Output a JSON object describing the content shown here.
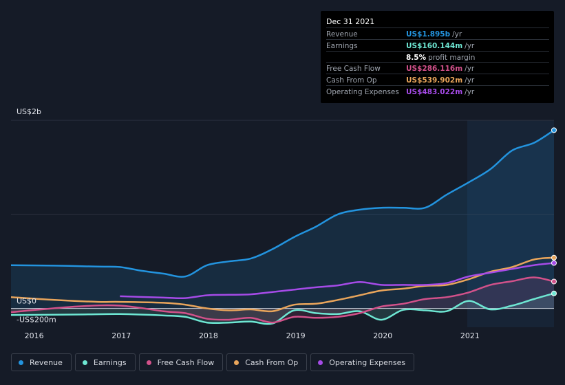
{
  "tooltip": {
    "date": "Dec 31 2021",
    "rows": [
      {
        "label": "Revenue",
        "value": "US$1.895b",
        "unit": "/yr",
        "color": "#2394df"
      },
      {
        "label": "Earnings",
        "value": "US$160.144m",
        "unit": "/yr",
        "color": "#6ee7d3"
      },
      {
        "label": "",
        "value": "8.5%",
        "unit": "profit margin",
        "color": "#ffffff"
      },
      {
        "label": "Free Cash Flow",
        "value": "US$286.116m",
        "unit": "/yr",
        "color": "#d2518a"
      },
      {
        "label": "Cash From Op",
        "value": "US$539.902m",
        "unit": "/yr",
        "color": "#e9a55b"
      },
      {
        "label": "Operating Expenses",
        "value": "US$483.022m",
        "unit": "/yr",
        "color": "#a64be8"
      }
    ]
  },
  "legend": [
    {
      "label": "Revenue",
      "color": "#2394df"
    },
    {
      "label": "Earnings",
      "color": "#6ee7d3"
    },
    {
      "label": "Free Cash Flow",
      "color": "#d2518a"
    },
    {
      "label": "Cash From Op",
      "color": "#e9a55b"
    },
    {
      "label": "Operating Expenses",
      "color": "#a64be8"
    }
  ],
  "chart_data": {
    "type": "line",
    "y_tick_labels": [
      "US$2b",
      "US$0",
      "-US$200m"
    ],
    "x_tick_labels": [
      "2016",
      "2017",
      "2018",
      "2019",
      "2020",
      "2021"
    ],
    "ylim": [
      -200,
      2000
    ],
    "y_unit": "US$m",
    "xlim": [
      2015.75,
      2021.98
    ],
    "past_data_shaded_from": 2021.0,
    "series": [
      {
        "name": "Revenue",
        "color": "#2394df",
        "fill": true,
        "x": [
          2015.75,
          2016.25,
          2016.75,
          2017.0,
          2017.25,
          2017.5,
          2017.75,
          2018.0,
          2018.25,
          2018.5,
          2018.75,
          2019.0,
          2019.25,
          2019.5,
          2019.75,
          2020.0,
          2020.25,
          2020.5,
          2020.75,
          2021.0,
          2021.25,
          2021.5,
          2021.75,
          2021.98
        ],
        "y": [
          460,
          455,
          445,
          440,
          400,
          370,
          340,
          460,
          500,
          530,
          630,
          760,
          870,
          1000,
          1050,
          1070,
          1070,
          1070,
          1210,
          1340,
          1480,
          1680,
          1760,
          1895
        ]
      },
      {
        "name": "Earnings",
        "color": "#6ee7d3",
        "fill": true,
        "x": [
          2015.75,
          2016.5,
          2017.0,
          2017.5,
          2017.75,
          2018.0,
          2018.25,
          2018.5,
          2018.75,
          2019.0,
          2019.25,
          2019.5,
          2019.75,
          2020.0,
          2020.25,
          2020.5,
          2020.75,
          2021.0,
          2021.25,
          2021.5,
          2021.75,
          2021.98
        ],
        "y": [
          -70,
          -65,
          -60,
          -75,
          -90,
          -150,
          -150,
          -140,
          -160,
          -20,
          -50,
          -60,
          -30,
          -120,
          -15,
          -20,
          -30,
          80,
          -10,
          30,
          100,
          160
        ]
      },
      {
        "name": "Free Cash Flow",
        "color": "#d2518a",
        "fill": true,
        "x": [
          2015.75,
          2016.5,
          2017.0,
          2017.5,
          2017.75,
          2018.0,
          2018.25,
          2018.5,
          2018.75,
          2019.0,
          2019.25,
          2019.5,
          2019.75,
          2020.0,
          2020.25,
          2020.5,
          2020.75,
          2021.0,
          2021.25,
          2021.5,
          2021.75,
          2021.98
        ],
        "y": [
          -40,
          20,
          30,
          -30,
          -50,
          -110,
          -120,
          -100,
          -150,
          -90,
          -100,
          -90,
          -50,
          20,
          50,
          100,
          120,
          170,
          250,
          290,
          330,
          286
        ]
      },
      {
        "name": "Cash From Op",
        "color": "#e9a55b",
        "fill": false,
        "x": [
          2015.75,
          2016.25,
          2016.75,
          2017.0,
          2017.5,
          2017.75,
          2018.0,
          2018.25,
          2018.5,
          2018.75,
          2019.0,
          2019.25,
          2019.5,
          2019.75,
          2020.0,
          2020.25,
          2020.5,
          2020.75,
          2021.0,
          2021.25,
          2021.5,
          2021.75,
          2021.98
        ],
        "y": [
          120,
          90,
          70,
          70,
          60,
          40,
          0,
          -20,
          -10,
          -30,
          40,
          50,
          90,
          140,
          190,
          210,
          240,
          250,
          310,
          390,
          440,
          520,
          540
        ]
      },
      {
        "name": "Operating Expenses",
        "color": "#a64be8",
        "fill": false,
        "x": [
          2017.0,
          2017.5,
          2017.75,
          2018.0,
          2018.25,
          2018.5,
          2018.75,
          2019.0,
          2019.25,
          2019.5,
          2019.75,
          2020.0,
          2020.25,
          2020.5,
          2020.75,
          2021.0,
          2021.25,
          2021.5,
          2021.75,
          2021.98
        ],
        "y": [
          130,
          115,
          110,
          140,
          145,
          150,
          175,
          200,
          225,
          245,
          280,
          250,
          250,
          250,
          270,
          340,
          380,
          420,
          460,
          483
        ]
      }
    ]
  }
}
